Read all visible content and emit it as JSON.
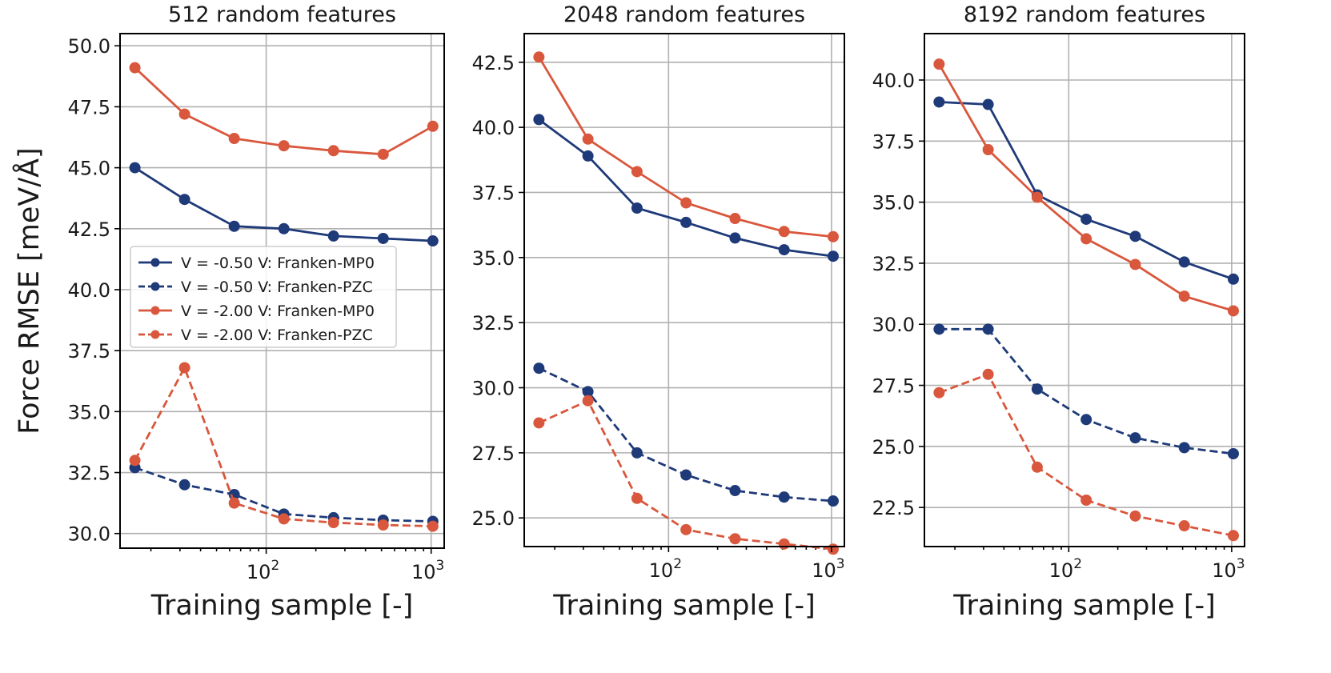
{
  "chart_data": [
    {
      "type": "line",
      "title": "512 random features",
      "xlabel": "Training sample [-]",
      "ylabel": "Force RMSE [meV/Å]",
      "xscale": "log",
      "xlim": [
        13,
        1200
      ],
      "ylim": [
        29.4,
        50.5
      ],
      "yticks": [
        30.0,
        32.5,
        35.0,
        37.5,
        40.0,
        42.5,
        45.0,
        47.5,
        50.0
      ],
      "ytick_labels": [
        "30.0",
        "32.5",
        "35.0",
        "37.5",
        "40.0",
        "42.5",
        "45.0",
        "47.5",
        "50.0"
      ],
      "xticks": [
        100,
        1000
      ],
      "xtick_labels": [
        {
          "base": "10",
          "exp": "2"
        },
        {
          "base": "10",
          "exp": "3"
        }
      ],
      "grid": true,
      "legend": "center-left",
      "x": [
        16,
        32,
        64,
        128,
        256,
        512,
        1024
      ],
      "series": [
        {
          "name": "V = -0.50 V: Franken-MP0",
          "color": "#1f3a78",
          "dash": "solid",
          "values": [
            45.0,
            43.7,
            42.6,
            42.5,
            42.2,
            42.1,
            42.0
          ]
        },
        {
          "name": "V = -0.50 V: Franken-PZC",
          "color": "#1f3a78",
          "dash": "dashed",
          "values": [
            32.7,
            32.0,
            31.6,
            30.8,
            30.65,
            30.55,
            30.5
          ]
        },
        {
          "name": "V = -2.00 V: Franken-MP0",
          "color": "#d9573c",
          "dash": "solid",
          "values": [
            49.1,
            47.2,
            46.2,
            45.9,
            45.7,
            45.55,
            46.7
          ]
        },
        {
          "name": "V = -2.00 V: Franken-PZC",
          "color": "#d9573c",
          "dash": "dashed",
          "values": [
            33.0,
            36.8,
            31.25,
            30.6,
            30.45,
            30.35,
            30.3
          ]
        }
      ]
    },
    {
      "type": "line",
      "title": "2048 random features",
      "xlabel": "Training sample [-]",
      "ylabel": "",
      "xscale": "log",
      "xlim": [
        13,
        1200
      ],
      "ylim": [
        23.9,
        43.6
      ],
      "yticks": [
        25.0,
        27.5,
        30.0,
        32.5,
        35.0,
        37.5,
        40.0,
        42.5
      ],
      "ytick_labels": [
        "25.0",
        "27.5",
        "30.0",
        "32.5",
        "35.0",
        "37.5",
        "40.0",
        "42.5"
      ],
      "xticks": [
        100,
        1000
      ],
      "xtick_labels": [
        {
          "base": "10",
          "exp": "2"
        },
        {
          "base": "10",
          "exp": "3"
        }
      ],
      "grid": true,
      "legend": "none",
      "x": [
        16,
        32,
        64,
        128,
        256,
        512,
        1024
      ],
      "series": [
        {
          "name": "V = -0.50 V: Franken-MP0",
          "color": "#1f3a78",
          "dash": "solid",
          "values": [
            40.3,
            38.9,
            36.9,
            36.35,
            35.75,
            35.3,
            35.05
          ]
        },
        {
          "name": "V = -0.50 V: Franken-PZC",
          "color": "#1f3a78",
          "dash": "dashed",
          "values": [
            30.75,
            29.85,
            27.5,
            26.65,
            26.05,
            25.8,
            25.65
          ]
        },
        {
          "name": "V = -2.00 V: Franken-MP0",
          "color": "#d9573c",
          "dash": "solid",
          "values": [
            42.7,
            39.55,
            38.3,
            37.1,
            36.5,
            36.0,
            35.8
          ]
        },
        {
          "name": "V = -2.00 V: Franken-PZC",
          "color": "#d9573c",
          "dash": "dashed",
          "values": [
            28.65,
            29.5,
            25.75,
            24.55,
            24.2,
            24.0,
            23.8
          ]
        }
      ]
    },
    {
      "type": "line",
      "title": "8192 random features",
      "xlabel": "Training sample [-]",
      "ylabel": "",
      "xscale": "log",
      "xlim": [
        13,
        1200
      ],
      "ylim": [
        20.9,
        41.9
      ],
      "yticks": [
        22.5,
        25.0,
        27.5,
        30.0,
        32.5,
        35.0,
        37.5,
        40.0
      ],
      "ytick_labels": [
        "22.5",
        "25.0",
        "27.5",
        "30.0",
        "32.5",
        "35.0",
        "37.5",
        "40.0"
      ],
      "xticks": [
        100,
        1000
      ],
      "xtick_labels": [
        {
          "base": "10",
          "exp": "2"
        },
        {
          "base": "10",
          "exp": "3"
        }
      ],
      "grid": true,
      "legend": "none",
      "x": [
        16,
        32,
        64,
        128,
        256,
        512,
        1024
      ],
      "series": [
        {
          "name": "V = -0.50 V: Franken-MP0",
          "color": "#1f3a78",
          "dash": "solid",
          "values": [
            39.1,
            39.0,
            35.3,
            34.3,
            33.6,
            32.55,
            31.85
          ]
        },
        {
          "name": "V = -0.50 V: Franken-PZC",
          "color": "#1f3a78",
          "dash": "dashed",
          "values": [
            29.8,
            29.8,
            27.35,
            26.1,
            25.35,
            24.95,
            24.7
          ]
        },
        {
          "name": "V = -2.00 V: Franken-MP0",
          "color": "#d9573c",
          "dash": "solid",
          "values": [
            40.65,
            37.15,
            35.2,
            33.5,
            32.45,
            31.15,
            30.55
          ]
        },
        {
          "name": "V = -2.00 V: Franken-PZC",
          "color": "#d9573c",
          "dash": "dashed",
          "values": [
            27.2,
            27.95,
            24.15,
            22.8,
            22.15,
            21.75,
            21.35
          ]
        }
      ]
    }
  ]
}
